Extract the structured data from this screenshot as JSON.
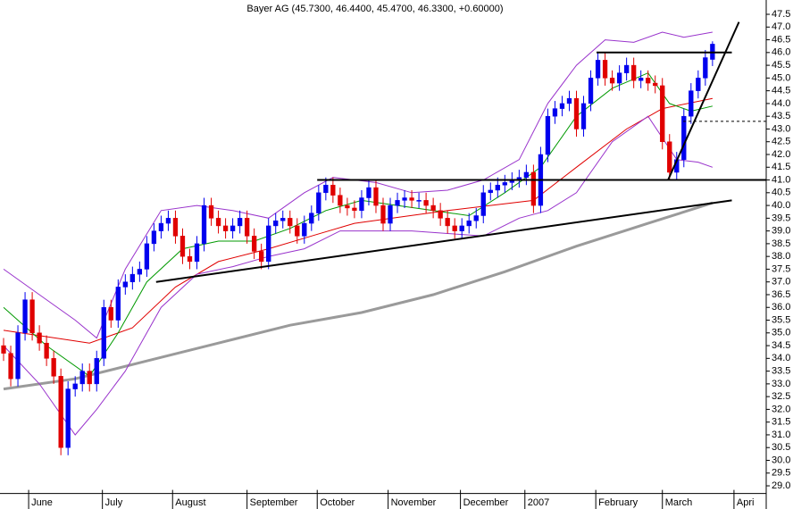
{
  "chart_data": {
    "type": "candlestick",
    "title": "Bayer AG (45.7300, 46.4400, 45.4700, 46.3300, +0.60000)",
    "up_color": "#0000ee",
    "down_color": "#e00000",
    "xlim": [
      -0.5,
      106.5
    ],
    "ylim": [
      28.7,
      47.9
    ],
    "xticks": [
      {
        "value": 3.5,
        "label": "June"
      },
      {
        "value": 13.8,
        "label": "July"
      },
      {
        "value": 23.6,
        "label": "August"
      },
      {
        "value": 34.0,
        "label": "September"
      },
      {
        "value": 43.8,
        "label": "October"
      },
      {
        "value": 53.7,
        "label": "November"
      },
      {
        "value": 63.8,
        "label": "December"
      },
      {
        "value": 72.8,
        "label": "2007"
      },
      {
        "value": 82.7,
        "label": "February"
      },
      {
        "value": 92.0,
        "label": "March"
      },
      {
        "value": 102.0,
        "label": "Apri"
      }
    ],
    "yticks": [
      {
        "value": 29,
        "label": "29.0"
      },
      29.5,
      {
        "value": 30,
        "label": "30.0"
      },
      30.5,
      {
        "value": 31,
        "label": "31.0"
      },
      31.5,
      {
        "value": 32,
        "label": "32.0"
      },
      32.5,
      {
        "value": 33,
        "label": "33.0"
      },
      33.5,
      {
        "value": 34,
        "label": "34.0"
      },
      34.5,
      {
        "value": 35,
        "label": "35.0"
      },
      35.5,
      {
        "value": 36,
        "label": "36.0"
      },
      36.5,
      {
        "value": 37,
        "label": "37.0"
      },
      37.5,
      {
        "value": 38,
        "label": "38.0"
      },
      38.5,
      {
        "value": 39,
        "label": "39.0"
      },
      39.5,
      {
        "value": 40,
        "label": "40.0"
      },
      40.5,
      {
        "value": 41,
        "label": "41.0"
      },
      41.5,
      {
        "value": 42,
        "label": "42.0"
      },
      42.5,
      {
        "value": 43,
        "label": "43.0"
      },
      43.5,
      {
        "value": 44,
        "label": "44.0"
      },
      44.5,
      {
        "value": 45,
        "label": "45.0"
      },
      45.5,
      {
        "value": 46,
        "label": "46.0"
      },
      46.5,
      {
        "value": 47,
        "label": "47.0"
      },
      47.5
    ],
    "ohlc": {
      "open": [
        34.5,
        34.2,
        33.2,
        35.0,
        36.3,
        35.0,
        34.6,
        34.0,
        33.3,
        30.5,
        32.8,
        33.0,
        33.5,
        33.0,
        34.0,
        36.0,
        35.5,
        36.8,
        37.0,
        37.3,
        37.5,
        38.5,
        39.0,
        39.3,
        39.5,
        38.8,
        38.0,
        37.8,
        38.5,
        40.0,
        39.5,
        39.2,
        39.0,
        39.2,
        39.5,
        38.8,
        38.2,
        37.8,
        39.2,
        39.4,
        39.5,
        39.2,
        38.8,
        39.3,
        39.7,
        40.5,
        40.8,
        40.4,
        40.0,
        39.9,
        39.8,
        40.3,
        40.7,
        40.0,
        39.3,
        40.0,
        40.2,
        40.3,
        40.2,
        40.2,
        40.0,
        39.8,
        39.5,
        39.2,
        39.0,
        39.2,
        39.4,
        39.6,
        40.5,
        40.6,
        40.8,
        40.9,
        41.0,
        41.1,
        41.3,
        40.0,
        42.0,
        43.5,
        43.8,
        44.0,
        44.2,
        43.0,
        44.0,
        45.0,
        45.7,
        45.0,
        44.8,
        45.2,
        45.5,
        44.9,
        45.0,
        44.8,
        44.7,
        42.5,
        41.3,
        41.8,
        43.5,
        44.5,
        45.0,
        45.73
      ],
      "high": [
        34.8,
        34.5,
        35.3,
        36.6,
        36.6,
        35.3,
        34.9,
        34.3,
        33.6,
        33.1,
        33.3,
        33.8,
        33.8,
        34.3,
        36.3,
        36.3,
        37.1,
        37.3,
        37.6,
        37.8,
        38.8,
        39.3,
        39.6,
        39.8,
        39.8,
        39.1,
        38.3,
        38.8,
        40.3,
        40.3,
        39.8,
        39.5,
        39.5,
        39.8,
        39.8,
        39.1,
        38.5,
        39.5,
        39.7,
        39.8,
        39.8,
        39.5,
        39.6,
        40.0,
        40.8,
        41.1,
        41.1,
        40.7,
        40.3,
        40.2,
        40.6,
        41.0,
        41.0,
        40.3,
        40.3,
        40.5,
        40.6,
        40.6,
        40.5,
        40.5,
        40.3,
        40.1,
        39.8,
        39.5,
        39.5,
        39.7,
        39.9,
        40.8,
        40.9,
        41.1,
        41.2,
        41.3,
        41.4,
        41.6,
        41.6,
        42.3,
        43.8,
        44.1,
        44.3,
        44.5,
        44.5,
        44.3,
        45.3,
        46.0,
        46.0,
        45.3,
        45.5,
        45.8,
        45.8,
        45.3,
        45.3,
        45.1,
        45.0,
        42.8,
        42.1,
        43.8,
        44.8,
        45.3,
        46.1,
        46.44
      ],
      "low": [
        33.9,
        32.9,
        32.9,
        34.7,
        34.7,
        34.3,
        33.7,
        33.0,
        30.2,
        30.2,
        32.5,
        32.7,
        32.7,
        32.7,
        33.7,
        35.2,
        35.2,
        36.5,
        36.7,
        37.0,
        37.2,
        38.2,
        38.7,
        39.0,
        38.5,
        37.7,
        37.5,
        37.5,
        38.2,
        39.2,
        38.9,
        38.7,
        38.7,
        38.9,
        38.5,
        37.9,
        37.5,
        37.5,
        38.9,
        39.1,
        38.9,
        38.5,
        38.5,
        39.0,
        39.4,
        40.2,
        40.1,
        39.7,
        39.6,
        39.5,
        39.5,
        40.0,
        39.7,
        39.0,
        39.0,
        39.7,
        39.9,
        39.9,
        39.9,
        39.7,
        39.5,
        39.2,
        38.9,
        38.7,
        38.7,
        38.9,
        39.1,
        39.3,
        40.2,
        40.3,
        40.5,
        40.6,
        40.7,
        40.8,
        39.7,
        39.7,
        41.7,
        43.2,
        43.5,
        43.7,
        42.7,
        42.7,
        43.7,
        44.7,
        44.7,
        44.5,
        44.5,
        44.9,
        44.6,
        44.6,
        44.5,
        44.4,
        42.2,
        41.0,
        41.0,
        41.5,
        43.2,
        44.2,
        44.7,
        45.47
      ],
      "close": [
        34.2,
        33.2,
        35.0,
        36.3,
        35.0,
        34.6,
        34.0,
        33.3,
        30.5,
        32.8,
        33.0,
        33.5,
        33.0,
        34.0,
        36.0,
        35.5,
        36.8,
        37.0,
        37.3,
        37.5,
        38.5,
        39.0,
        39.3,
        39.5,
        38.8,
        38.0,
        37.8,
        38.5,
        40.0,
        39.5,
        39.2,
        39.0,
        39.2,
        39.5,
        38.8,
        38.2,
        37.8,
        39.2,
        39.4,
        39.5,
        39.2,
        38.8,
        39.3,
        39.7,
        40.5,
        40.8,
        40.4,
        40.0,
        39.9,
        39.8,
        40.3,
        40.7,
        40.0,
        39.3,
        40.0,
        40.2,
        40.3,
        40.2,
        40.2,
        40.0,
        39.8,
        39.5,
        39.2,
        39.0,
        39.2,
        39.4,
        39.6,
        40.5,
        40.6,
        40.8,
        40.9,
        41.0,
        41.1,
        41.3,
        40.0,
        42.0,
        43.5,
        43.8,
        44.0,
        44.2,
        43.0,
        44.0,
        45.0,
        45.7,
        45.0,
        44.8,
        45.2,
        45.5,
        44.9,
        45.0,
        44.8,
        44.7,
        42.5,
        41.3,
        41.8,
        43.5,
        44.5,
        45.0,
        45.8,
        46.33
      ]
    },
    "overlays": [
      {
        "color": "#9a9a9a",
        "width": 3,
        "x": [
          0,
          10,
          20,
          30,
          40,
          50,
          60,
          70,
          80,
          90,
          99
        ],
        "values": [
          32.8,
          33.2,
          33.9,
          34.6,
          35.3,
          35.8,
          36.5,
          37.4,
          38.4,
          39.3,
          40.1
        ]
      },
      {
        "color": "#e00000",
        "width": 1,
        "x": [
          0,
          12,
          18,
          24,
          30,
          37,
          43,
          49,
          62,
          74,
          80,
          87,
          92,
          99
        ],
        "values": [
          35.1,
          34.6,
          35.2,
          36.8,
          37.8,
          38.3,
          38.8,
          39.3,
          39.8,
          40.2,
          41.5,
          43.0,
          43.8,
          44.2
        ]
      },
      {
        "color": "#009900",
        "width": 1,
        "x": [
          0,
          6,
          12,
          16,
          20,
          25,
          30,
          35,
          40,
          45,
          50,
          55,
          60,
          65,
          70,
          75,
          80,
          85,
          90,
          93,
          96,
          99
        ],
        "values": [
          36.0,
          34.5,
          33.3,
          35.0,
          37.0,
          38.3,
          38.6,
          38.6,
          39.1,
          39.8,
          40.2,
          40.0,
          39.8,
          39.6,
          40.5,
          41.5,
          43.5,
          44.6,
          45.2,
          44.0,
          43.7,
          43.9
        ]
      },
      {
        "color": "#9933cc",
        "width": 1,
        "x": [
          0,
          5,
          10,
          13,
          17,
          22,
          27,
          32,
          37,
          42,
          46,
          52,
          57,
          62,
          67,
          72,
          76,
          80,
          84,
          88,
          92,
          95,
          99
        ],
        "values": [
          37.5,
          36.5,
          35.5,
          34.8,
          37.5,
          39.8,
          40.0,
          39.8,
          39.5,
          40.5,
          41.1,
          40.9,
          40.5,
          40.6,
          41.0,
          41.8,
          44.0,
          45.5,
          46.5,
          46.4,
          46.8,
          46.6,
          46.8
        ]
      },
      {
        "color": "#9933cc",
        "width": 1,
        "x": [
          0,
          5,
          10,
          13,
          17,
          22,
          27,
          32,
          37,
          42,
          47,
          52,
          57,
          62,
          67,
          72,
          76,
          80,
          85,
          90,
          94,
          97,
          99
        ],
        "values": [
          34.5,
          33.0,
          31.0,
          32.0,
          33.5,
          36.0,
          37.3,
          37.6,
          38.0,
          38.3,
          39.0,
          39.0,
          39.0,
          38.9,
          38.8,
          39.5,
          39.8,
          40.5,
          42.5,
          43.5,
          41.8,
          41.7,
          41.5
        ]
      }
    ],
    "trendlines": [
      {
        "x": [
          82.8,
          101.7
        ],
        "y": [
          46.0,
          46.0
        ],
        "dash": false
      },
      {
        "x": [
          43.8,
          106.5
        ],
        "y": [
          41.0,
          41.0
        ],
        "dash": false
      },
      {
        "x": [
          21.3,
          101.7
        ],
        "y": [
          37.0,
          40.2
        ],
        "dash": false
      },
      {
        "x": [
          92.8,
          102.7
        ],
        "y": [
          41.0,
          47.2
        ],
        "dash": false
      },
      {
        "x": [
          94.9,
          106.5
        ],
        "y": [
          43.3,
          43.3
        ],
        "dash": true
      }
    ]
  }
}
